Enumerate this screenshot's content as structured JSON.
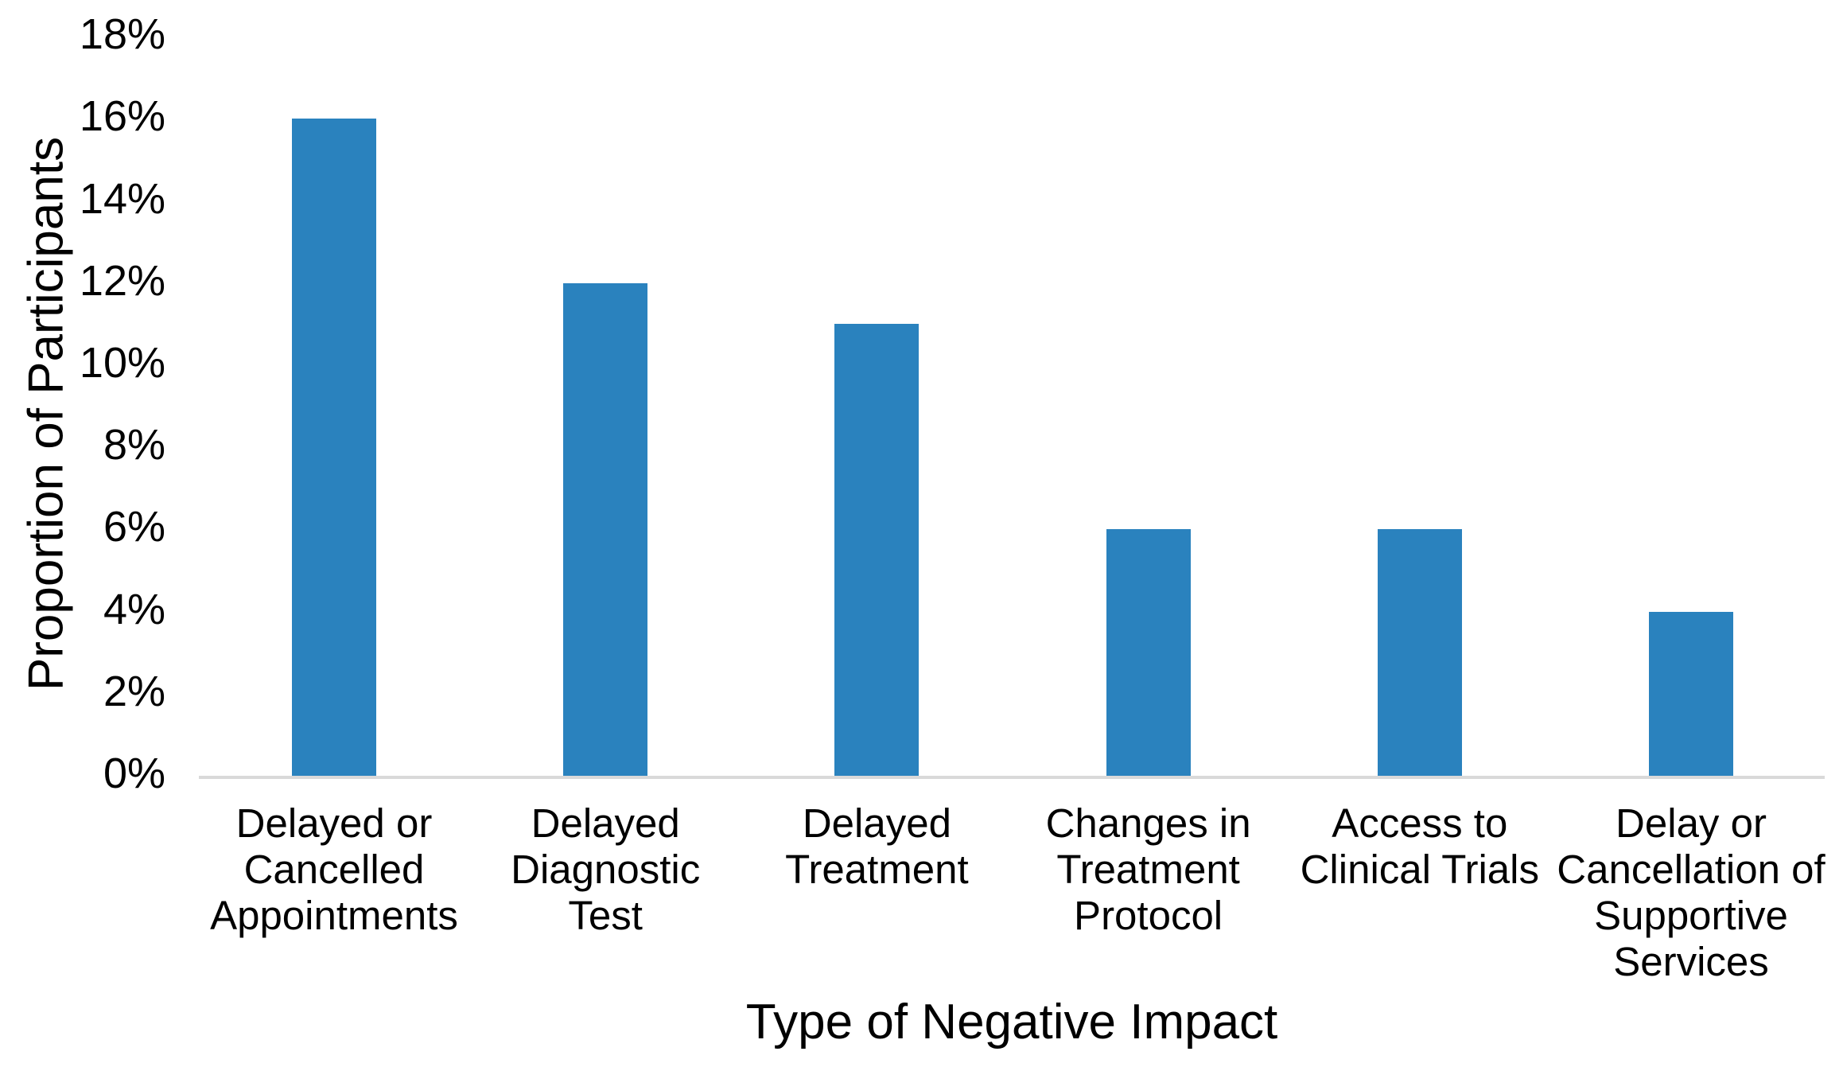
{
  "chart_data": {
    "type": "bar",
    "title": "",
    "xlabel": "Type of Negative Impact",
    "ylabel": "Proportion of Participants",
    "categories": [
      "Delayed or Cancelled Appointments",
      "Delayed Diagnostic Test",
      "Delayed Treatment",
      "Changes in Treatment Protocol",
      "Access to Clinical Trials",
      "Delay or Cancellation of Supportive Services"
    ],
    "category_label_lines": [
      [
        "Delayed or",
        "Cancelled",
        "Appointments"
      ],
      [
        "Delayed",
        "Diagnostic",
        "Test"
      ],
      [
        "Delayed",
        "Treatment"
      ],
      [
        "Changes in",
        "Treatment",
        "Protocol"
      ],
      [
        "Access to",
        "Clinical Trials"
      ],
      [
        "Delay or",
        "Cancellation of",
        "Supportive",
        "Services"
      ]
    ],
    "values": [
      16,
      12,
      11,
      6,
      6,
      4
    ],
    "unit": "%",
    "ylim": [
      0,
      18
    ],
    "ytick_step": 2,
    "ytick_labels": [
      "0%",
      "2%",
      "4%",
      "6%",
      "8%",
      "10%",
      "12%",
      "14%",
      "16%",
      "18%"
    ],
    "grid": "off",
    "legend": "none",
    "bar_color": "#2A82BE",
    "axis_line_color": "#D9D9D9",
    "text_color": "#000000",
    "background": "#FFFFFF"
  }
}
